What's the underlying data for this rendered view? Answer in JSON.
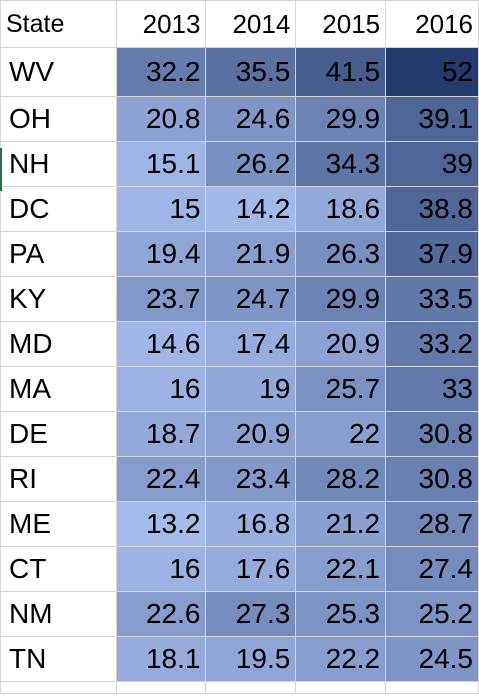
{
  "table": {
    "header": {
      "state": "State",
      "years": [
        "2013",
        "2014",
        "2015",
        "2016"
      ]
    },
    "rows": [
      {
        "state": "WV",
        "values": [
          "32.2",
          "35.5",
          "41.5",
          "52"
        ]
      },
      {
        "state": "OH",
        "values": [
          "20.8",
          "24.6",
          "29.9",
          "39.1"
        ]
      },
      {
        "state": "NH",
        "values": [
          "15.1",
          "26.2",
          "34.3",
          "39"
        ]
      },
      {
        "state": "DC",
        "values": [
          "15",
          "14.2",
          "18.6",
          "38.8"
        ]
      },
      {
        "state": "PA",
        "values": [
          "19.4",
          "21.9",
          "26.3",
          "37.9"
        ]
      },
      {
        "state": "KY",
        "values": [
          "23.7",
          "24.7",
          "29.9",
          "33.5"
        ]
      },
      {
        "state": "MD",
        "values": [
          "14.6",
          "17.4",
          "20.9",
          "33.2"
        ]
      },
      {
        "state": "MA",
        "values": [
          "16",
          "19",
          "25.7",
          "33"
        ]
      },
      {
        "state": "DE",
        "values": [
          "18.7",
          "20.9",
          "22",
          "30.8"
        ]
      },
      {
        "state": "RI",
        "values": [
          "22.4",
          "23.4",
          "28.2",
          "30.8"
        ]
      },
      {
        "state": "ME",
        "values": [
          "13.2",
          "16.8",
          "21.2",
          "28.7"
        ]
      },
      {
        "state": "CT",
        "values": [
          "16",
          "17.6",
          "22.1",
          "27.4"
        ]
      },
      {
        "state": "NM",
        "values": [
          "22.6",
          "27.3",
          "25.3",
          "25.2"
        ]
      },
      {
        "state": "TN",
        "values": [
          "18.1",
          "19.5",
          "22.2",
          "24.5"
        ]
      }
    ]
  },
  "color_scale": {
    "low": "#a6bbeb",
    "high": "#243a6c",
    "min": 13.2,
    "max": 52
  }
}
